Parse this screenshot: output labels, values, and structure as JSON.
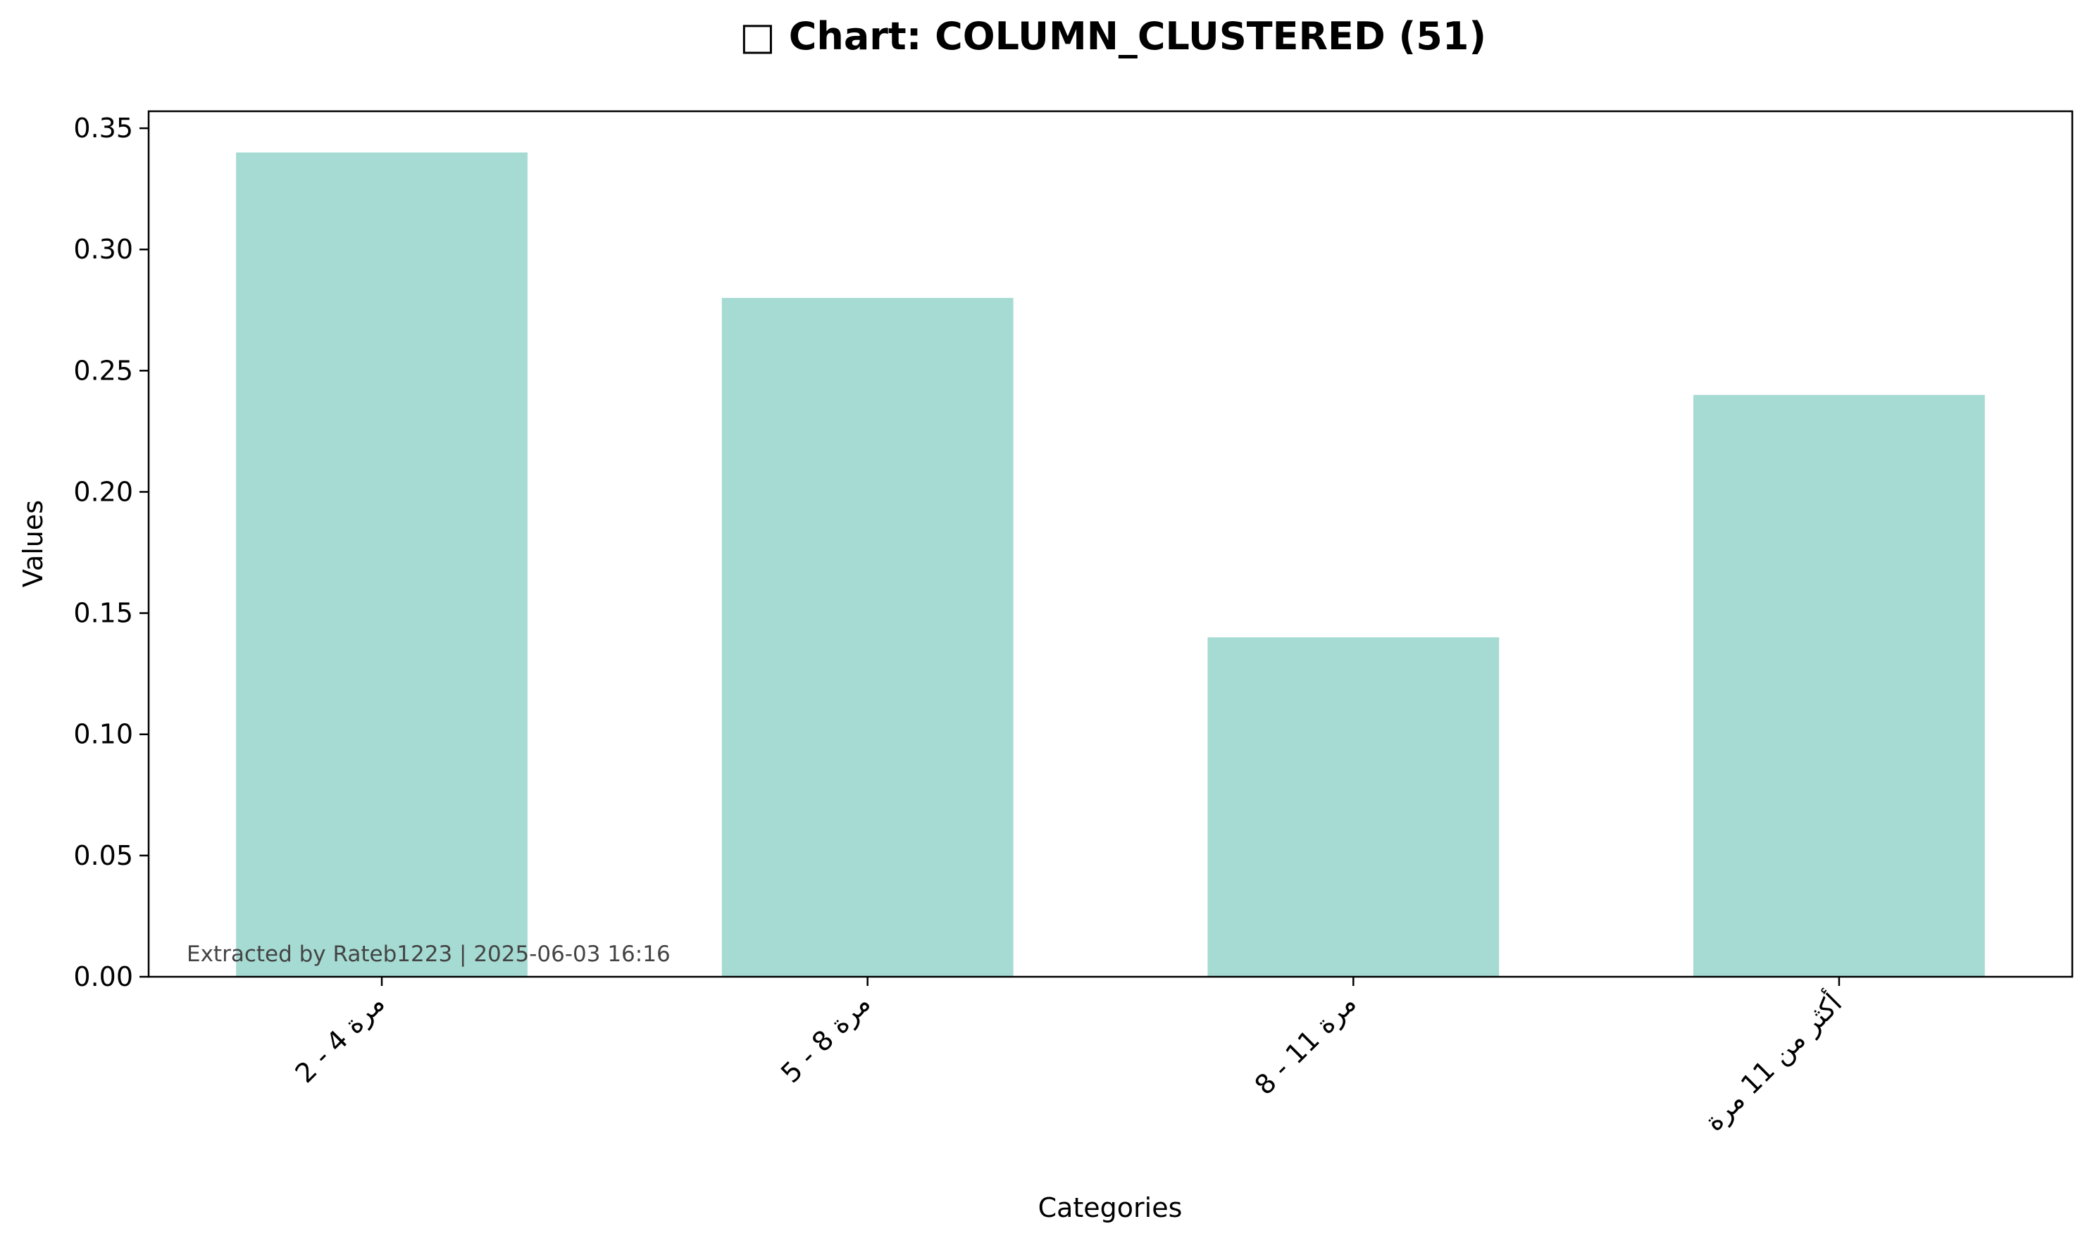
{
  "chart_data": {
    "type": "bar",
    "title": "□ Chart: COLUMN_CLUSTERED (51)",
    "xlabel": "Categories",
    "ylabel": "Values",
    "categories": [
      "2 - 4 مرة",
      "5 - 8 مرة",
      "8 - 11 مرة",
      "أكثر من 11 مرة"
    ],
    "series": [
      {
        "values": [
          0.34,
          0.28,
          0.14,
          0.24
        ]
      }
    ],
    "ylim": [
      0,
      0.357
    ],
    "yticks": [
      0.0,
      0.05,
      0.1,
      0.15,
      0.2,
      0.25,
      0.3,
      0.35
    ],
    "ytick_labels": [
      "0.00",
      "0.05",
      "0.10",
      "0.15",
      "0.20",
      "0.25",
      "0.30",
      "0.35"
    ],
    "grid": false,
    "legend": "none",
    "bar_color": "#a5dbd3",
    "annotation": "Extracted by Rateb1223 | 2025-06-03 16:16"
  }
}
